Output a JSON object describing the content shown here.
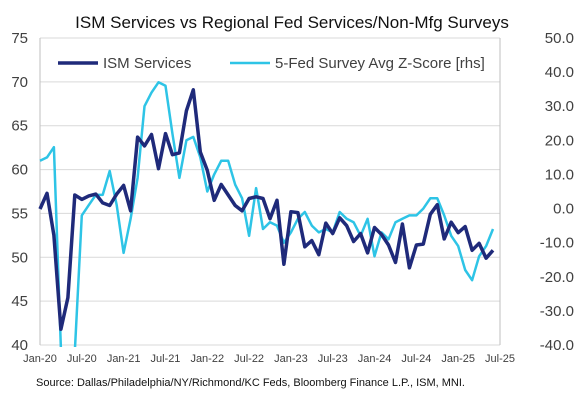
{
  "chart_data": {
    "type": "line",
    "title": "ISM Services vs Regional Fed Services/Non-Mfg Surveys",
    "source": "Source: Dallas/Philadelphia/NY/Richmond/KC Feds, Bloomberg Finance L.P., ISM, MNI.",
    "x_tick_labels": [
      "Jan-20",
      "Jul-20",
      "Jan-21",
      "Jul-21",
      "Jan-22",
      "Jul-22",
      "Jan-23",
      "Jul-23",
      "Jan-24",
      "Jul-24",
      "Jan-25",
      "Jul-25"
    ],
    "x_start": "2020-01",
    "x_end": "2025-07",
    "y_left": {
      "min": 40,
      "max": 75,
      "ticks": [
        "40",
        "45",
        "50",
        "55",
        "60",
        "65",
        "70",
        "75"
      ],
      "values": [
        40,
        45,
        50,
        55,
        60,
        65,
        70,
        75
      ]
    },
    "y_right": {
      "min": -40,
      "max": 50,
      "ticks": [
        "-40.0",
        "-30.0",
        "-20.0",
        "-10.0",
        "0.0",
        "10.0",
        "20.0",
        "30.0",
        "40.0",
        "50.0"
      ],
      "values": [
        -40,
        -30,
        -20,
        -10,
        0,
        10,
        20,
        30,
        40,
        50
      ]
    },
    "grid": true,
    "legend_position": "top",
    "series": [
      {
        "name": "ISM Services",
        "axis": "left",
        "color": "#1f2a7a",
        "x": [
          "2020-01",
          "2020-02",
          "2020-03",
          "2020-04",
          "2020-05",
          "2020-06",
          "2020-07",
          "2020-08",
          "2020-09",
          "2020-10",
          "2020-11",
          "2020-12",
          "2021-01",
          "2021-02",
          "2021-03",
          "2021-04",
          "2021-05",
          "2021-06",
          "2021-07",
          "2021-08",
          "2021-09",
          "2021-10",
          "2021-11",
          "2021-12",
          "2022-01",
          "2022-02",
          "2022-03",
          "2022-04",
          "2022-05",
          "2022-06",
          "2022-07",
          "2022-08",
          "2022-09",
          "2022-10",
          "2022-11",
          "2022-12",
          "2023-01",
          "2023-02",
          "2023-03",
          "2023-04",
          "2023-05",
          "2023-06",
          "2023-07",
          "2023-08",
          "2023-09",
          "2023-10",
          "2023-11",
          "2023-12",
          "2024-01",
          "2024-02",
          "2024-03",
          "2024-04",
          "2024-05",
          "2024-06",
          "2024-07",
          "2024-08",
          "2024-09",
          "2024-10",
          "2024-11",
          "2024-12",
          "2025-01",
          "2025-02",
          "2025-03",
          "2025-04",
          "2025-05",
          "2025-06"
        ],
        "values": [
          55.5,
          57.3,
          52.5,
          41.8,
          45.4,
          57.1,
          56.6,
          57.0,
          57.2,
          56.2,
          55.9,
          57.2,
          58.2,
          55.3,
          63.7,
          62.7,
          64.0,
          60.1,
          64.1,
          61.7,
          61.9,
          66.7,
          69.1,
          62.0,
          59.9,
          56.5,
          58.3,
          57.1,
          55.9,
          55.3,
          56.7,
          56.9,
          56.7,
          54.4,
          56.5,
          49.2,
          55.2,
          55.1,
          51.2,
          51.9,
          50.3,
          53.9,
          52.7,
          54.5,
          53.6,
          51.8,
          52.7,
          50.5,
          53.4,
          52.6,
          51.4,
          49.4,
          53.8,
          48.8,
          51.4,
          51.5,
          54.9,
          56.0,
          52.1,
          54.0,
          52.8,
          53.5,
          50.8,
          51.6,
          49.9,
          50.8
        ]
      },
      {
        "name": "5-Fed Survey Avg Z-Score [rhs]",
        "axis": "right",
        "color": "#2ec4e6",
        "x": [
          "2020-01",
          "2020-02",
          "2020-03",
          "2020-04",
          "2020-05",
          "2020-06",
          "2020-07",
          "2020-08",
          "2020-09",
          "2020-10",
          "2020-11",
          "2020-12",
          "2021-01",
          "2021-02",
          "2021-03",
          "2021-04",
          "2021-05",
          "2021-06",
          "2021-07",
          "2021-08",
          "2021-09",
          "2021-10",
          "2021-11",
          "2021-12",
          "2022-01",
          "2022-02",
          "2022-03",
          "2022-04",
          "2022-05",
          "2022-06",
          "2022-07",
          "2022-08",
          "2022-09",
          "2022-10",
          "2022-11",
          "2022-12",
          "2023-01",
          "2023-02",
          "2023-03",
          "2023-04",
          "2023-05",
          "2023-06",
          "2023-07",
          "2023-08",
          "2023-09",
          "2023-10",
          "2023-11",
          "2023-12",
          "2024-01",
          "2024-02",
          "2024-03",
          "2024-04",
          "2024-05",
          "2024-06",
          "2024-07",
          "2024-08",
          "2024-09",
          "2024-10",
          "2024-11",
          "2024-12",
          "2025-01",
          "2025-02",
          "2025-03",
          "2025-04",
          "2025-05",
          "2025-06"
        ],
        "values": [
          14,
          15,
          18,
          -41,
          -55,
          -42,
          -2,
          1,
          4,
          4,
          11,
          1,
          -13,
          -3,
          9,
          30,
          34,
          37,
          36,
          22,
          9,
          20,
          21,
          15,
          5,
          10,
          14,
          14,
          7,
          3,
          -8,
          6,
          -6,
          -4,
          -5,
          -10,
          -7,
          -3,
          -1,
          -5,
          -7,
          -6,
          -7,
          -1,
          -3,
          -4,
          -8,
          -3,
          -14,
          -7,
          -9,
          -4,
          -3,
          -2,
          -2,
          0,
          3,
          3,
          -2,
          -8,
          -11,
          -18,
          -21,
          -14,
          -11,
          -6
        ]
      }
    ]
  }
}
